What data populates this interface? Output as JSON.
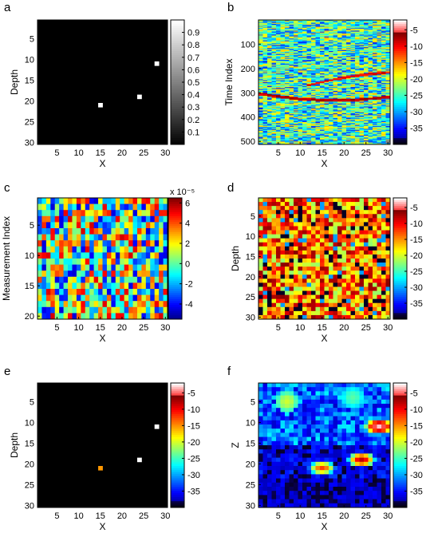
{
  "figure": {
    "panels": [
      {
        "letter": "a",
        "xlabel": "X",
        "ylabel": "Depth",
        "xticks": [
          "5",
          "10",
          "15",
          "20",
          "25",
          "30"
        ],
        "yticks": [
          "5",
          "10",
          "15",
          "20",
          "25",
          "30"
        ],
        "colorbar_ticks": [
          "0.1",
          "0.2",
          "0.3",
          "0.4",
          "0.5",
          "0.6",
          "0.7",
          "0.8",
          "0.9"
        ],
        "colorbar_exponent": ""
      },
      {
        "letter": "b",
        "xlabel": "X",
        "ylabel": "Time Index",
        "xticks": [
          "5",
          "10",
          "15",
          "20",
          "25",
          "30"
        ],
        "yticks": [
          "100",
          "200",
          "300",
          "400",
          "500"
        ],
        "colorbar_ticks": [
          "-5",
          "-10",
          "-15",
          "-20",
          "-25",
          "-30",
          "-35"
        ],
        "colorbar_exponent": ""
      },
      {
        "letter": "c",
        "xlabel": "X",
        "ylabel": "Measurement Index",
        "xticks": [
          "5",
          "10",
          "15",
          "20",
          "25",
          "30"
        ],
        "yticks": [
          "5",
          "10",
          "15",
          "20"
        ],
        "colorbar_ticks": [
          "6",
          "4",
          "2",
          "0",
          "-2",
          "-4"
        ],
        "colorbar_exponent": "x 10⁻⁵"
      },
      {
        "letter": "d",
        "xlabel": "X",
        "ylabel": "Depth",
        "xticks": [
          "5",
          "10",
          "15",
          "20",
          "25",
          "30"
        ],
        "yticks": [
          "5",
          "10",
          "15",
          "20",
          "25",
          "30"
        ],
        "colorbar_ticks": [
          "-5",
          "-10",
          "-15",
          "-20",
          "-25",
          "-30",
          "-35"
        ],
        "colorbar_exponent": ""
      },
      {
        "letter": "e",
        "xlabel": "X",
        "ylabel": "Depth",
        "xticks": [
          "5",
          "10",
          "15",
          "20",
          "25",
          "30"
        ],
        "yticks": [
          "5",
          "10",
          "15",
          "20",
          "25",
          "30"
        ],
        "colorbar_ticks": [
          "-5",
          "-10",
          "-15",
          "-20",
          "-25",
          "-30",
          "-35"
        ],
        "colorbar_exponent": ""
      },
      {
        "letter": "f",
        "xlabel": "X",
        "ylabel": "Z",
        "xticks": [
          "5",
          "10",
          "15",
          "20",
          "25",
          "30"
        ],
        "yticks": [
          "5",
          "10",
          "15",
          "20",
          "25",
          "30"
        ],
        "colorbar_ticks": [
          "-5",
          "-10",
          "-15",
          "-20",
          "-25",
          "-30",
          "-35"
        ],
        "colorbar_exponent": ""
      }
    ]
  },
  "chart_data": [
    {
      "panel": "a",
      "type": "heatmap",
      "colormap": "gray",
      "x_range": [
        1,
        30
      ],
      "y_range": [
        1,
        30
      ],
      "y_direction": "down",
      "clim": [
        0,
        1
      ],
      "background_value": 0,
      "cells": [
        {
          "x": 28,
          "y": 11,
          "value": 1
        },
        {
          "x": 24,
          "y": 19,
          "value": 1
        },
        {
          "x": 15,
          "y": 21,
          "value": 1
        }
      ]
    },
    {
      "panel": "b",
      "type": "heatmap",
      "colormap": "jet-white-top",
      "x_range": [
        1,
        30
      ],
      "y_range": [
        1,
        512
      ],
      "y_direction": "down",
      "clim": [
        -40,
        -2
      ],
      "description_values": "dense random field around -25 dB with two curved reflector bands near rows 200-230 and 300-340",
      "bands": [
        {
          "x": [
            1,
            8,
            15,
            22,
            30
          ],
          "y": [
            305,
            322,
            330,
            330,
            318
          ],
          "value": -8
        },
        {
          "x": [
            12,
            18,
            24,
            30
          ],
          "y": [
            268,
            244,
            226,
            216
          ],
          "value": -10
        }
      ]
    },
    {
      "panel": "c",
      "type": "heatmap",
      "colormap": "jet",
      "x_range": [
        1,
        30
      ],
      "y_range": [
        1,
        20
      ],
      "y_direction": "down",
      "clim": [
        -5.5e-05,
        6.5e-05
      ],
      "colorbar_exponent": -5
    },
    {
      "panel": "d",
      "type": "heatmap",
      "colormap": "jet-white-top",
      "x_range": [
        1,
        30
      ],
      "y_range": [
        1,
        30
      ],
      "y_direction": "down",
      "clim": [
        -40,
        -2
      ]
    },
    {
      "panel": "e",
      "type": "heatmap",
      "colormap": "jet-white-top",
      "x_range": [
        1,
        30
      ],
      "y_range": [
        1,
        30
      ],
      "y_direction": "down",
      "clim": [
        -40,
        -2
      ],
      "background_value": -40,
      "cells": [
        {
          "x": 28,
          "y": 11,
          "value": -2
        },
        {
          "x": 24,
          "y": 19,
          "value": -2
        },
        {
          "x": 15,
          "y": 21,
          "value": -15
        }
      ]
    },
    {
      "panel": "f",
      "type": "heatmap",
      "colormap": "jet-white-top",
      "x_range": [
        1,
        30
      ],
      "y_range": [
        1,
        30
      ],
      "y_direction": "down",
      "clim": [
        -40,
        -2
      ],
      "hotspots": [
        {
          "x": 28,
          "y": 11,
          "peak": -3
        },
        {
          "x": 24,
          "y": 19,
          "peak": -8
        },
        {
          "x": 15,
          "y": 21,
          "peak": -12
        }
      ]
    }
  ]
}
